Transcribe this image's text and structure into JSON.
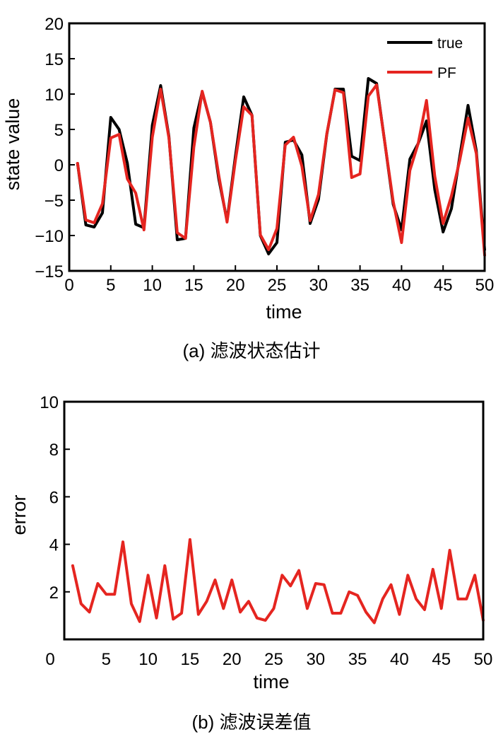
{
  "chart_data": [
    {
      "type": "line",
      "caption": "(a) 滤波状态估计",
      "xlabel": "time",
      "ylabel": "state value",
      "xlim": [
        0,
        50
      ],
      "ylim": [
        -15,
        20
      ],
      "xticks": [
        0,
        5,
        10,
        15,
        20,
        25,
        30,
        35,
        40,
        45,
        50
      ],
      "yticks": [
        -15,
        -10,
        -5,
        0,
        5,
        10,
        15,
        20
      ],
      "xtick_labels": [
        "0",
        "5",
        "10",
        "15",
        "20",
        "25",
        "30",
        "35",
        "40",
        "45",
        "50"
      ],
      "ytick_labels": [
        "−15",
        "−10",
        "−5",
        "0",
        "5",
        "10",
        "15",
        "20"
      ],
      "legend_position": "top-right",
      "x": [
        1,
        2,
        3,
        4,
        5,
        6,
        7,
        8,
        9,
        10,
        11,
        12,
        13,
        14,
        15,
        16,
        17,
        18,
        19,
        20,
        21,
        22,
        23,
        24,
        25,
        26,
        27,
        28,
        29,
        30,
        31,
        32,
        33,
        34,
        35,
        36,
        37,
        38,
        39,
        40,
        41,
        42,
        43,
        44,
        45,
        46,
        47,
        48,
        49,
        50
      ],
      "series": [
        {
          "name": "true",
          "color": "#000000",
          "values": [
            0.2,
            -8.5,
            -8.8,
            -6.8,
            6.7,
            5,
            0.2,
            -8.4,
            -8.9,
            5.6,
            11.2,
            4,
            -10.6,
            -10.4,
            5.2,
            10.3,
            6,
            -2,
            -7.9,
            1.2,
            9.6,
            7,
            -10,
            -12.6,
            -11,
            3.2,
            3.5,
            1.4,
            -8.3,
            -4.9,
            4.3,
            10.7,
            10.7,
            1.2,
            0.6,
            12.2,
            11.5,
            3,
            -5.6,
            -9.2,
            0.8,
            3,
            6.2,
            -3.5,
            -9.5,
            -6.2,
            1.1,
            8.4,
            2,
            -12
          ]
        },
        {
          "name": "PF",
          "color": "#e52520",
          "values": [
            0.2,
            -7.8,
            -8.2,
            -5.5,
            3.8,
            4.3,
            -2,
            -4,
            -9.2,
            3.9,
            10.7,
            3.8,
            -9.6,
            -10.4,
            2.5,
            10.4,
            6,
            -1.5,
            -8.1,
            0.6,
            8.2,
            7,
            -9.9,
            -12,
            -9,
            2.8,
            3.9,
            -0.2,
            -7.9,
            -4.2,
            4.4,
            10.6,
            10.2,
            -1.8,
            -1.3,
            9.7,
            11.3,
            3,
            -5.2,
            -11,
            -0.8,
            3,
            9.1,
            -1.6,
            -8.3,
            -4.4,
            0.6,
            6.6,
            1.6,
            -12.8
          ]
        }
      ]
    },
    {
      "type": "line",
      "caption": "(b) 滤波误差值",
      "xlabel": "time",
      "ylabel": "error",
      "xlim": [
        0,
        50
      ],
      "ylim": [
        0,
        10
      ],
      "xticks": [
        0,
        5,
        10,
        15,
        20,
        25,
        30,
        35,
        40,
        45,
        50
      ],
      "yticks": [
        2,
        4,
        6,
        8,
        10
      ],
      "xtick_labels": [
        "0",
        "5",
        "10",
        "15",
        "20",
        "25",
        "30",
        "35",
        "40",
        "45",
        "50"
      ],
      "ytick_labels": [
        "2",
        "4",
        "6",
        "8",
        "10"
      ],
      "x": [
        1,
        2,
        3,
        4,
        5,
        6,
        7,
        8,
        9,
        10,
        11,
        12,
        13,
        14,
        15,
        16,
        17,
        18,
        19,
        20,
        21,
        22,
        23,
        24,
        25,
        26,
        27,
        28,
        29,
        30,
        31,
        32,
        33,
        34,
        35,
        36,
        37,
        38,
        39,
        40,
        41,
        42,
        43,
        44,
        45,
        46,
        47,
        48,
        49,
        50
      ],
      "series": [
        {
          "color": "#e52520",
          "values": [
            3.1,
            1.5,
            1.15,
            2.35,
            1.9,
            1.9,
            4.1,
            1.5,
            0.75,
            2.7,
            0.9,
            3.1,
            0.85,
            1.1,
            4.2,
            1.05,
            1.6,
            2.5,
            1.3,
            2.5,
            1.15,
            1.6,
            0.9,
            0.8,
            1.3,
            2.7,
            2.25,
            2.9,
            1.3,
            2.35,
            2.3,
            1.1,
            1.1,
            2,
            1.85,
            1.15,
            0.7,
            1.7,
            2.3,
            1.05,
            2.7,
            1.7,
            1.25,
            2.95,
            1.3,
            3.75,
            1.7,
            1.7,
            2.7,
            0.8
          ]
        }
      ]
    }
  ]
}
